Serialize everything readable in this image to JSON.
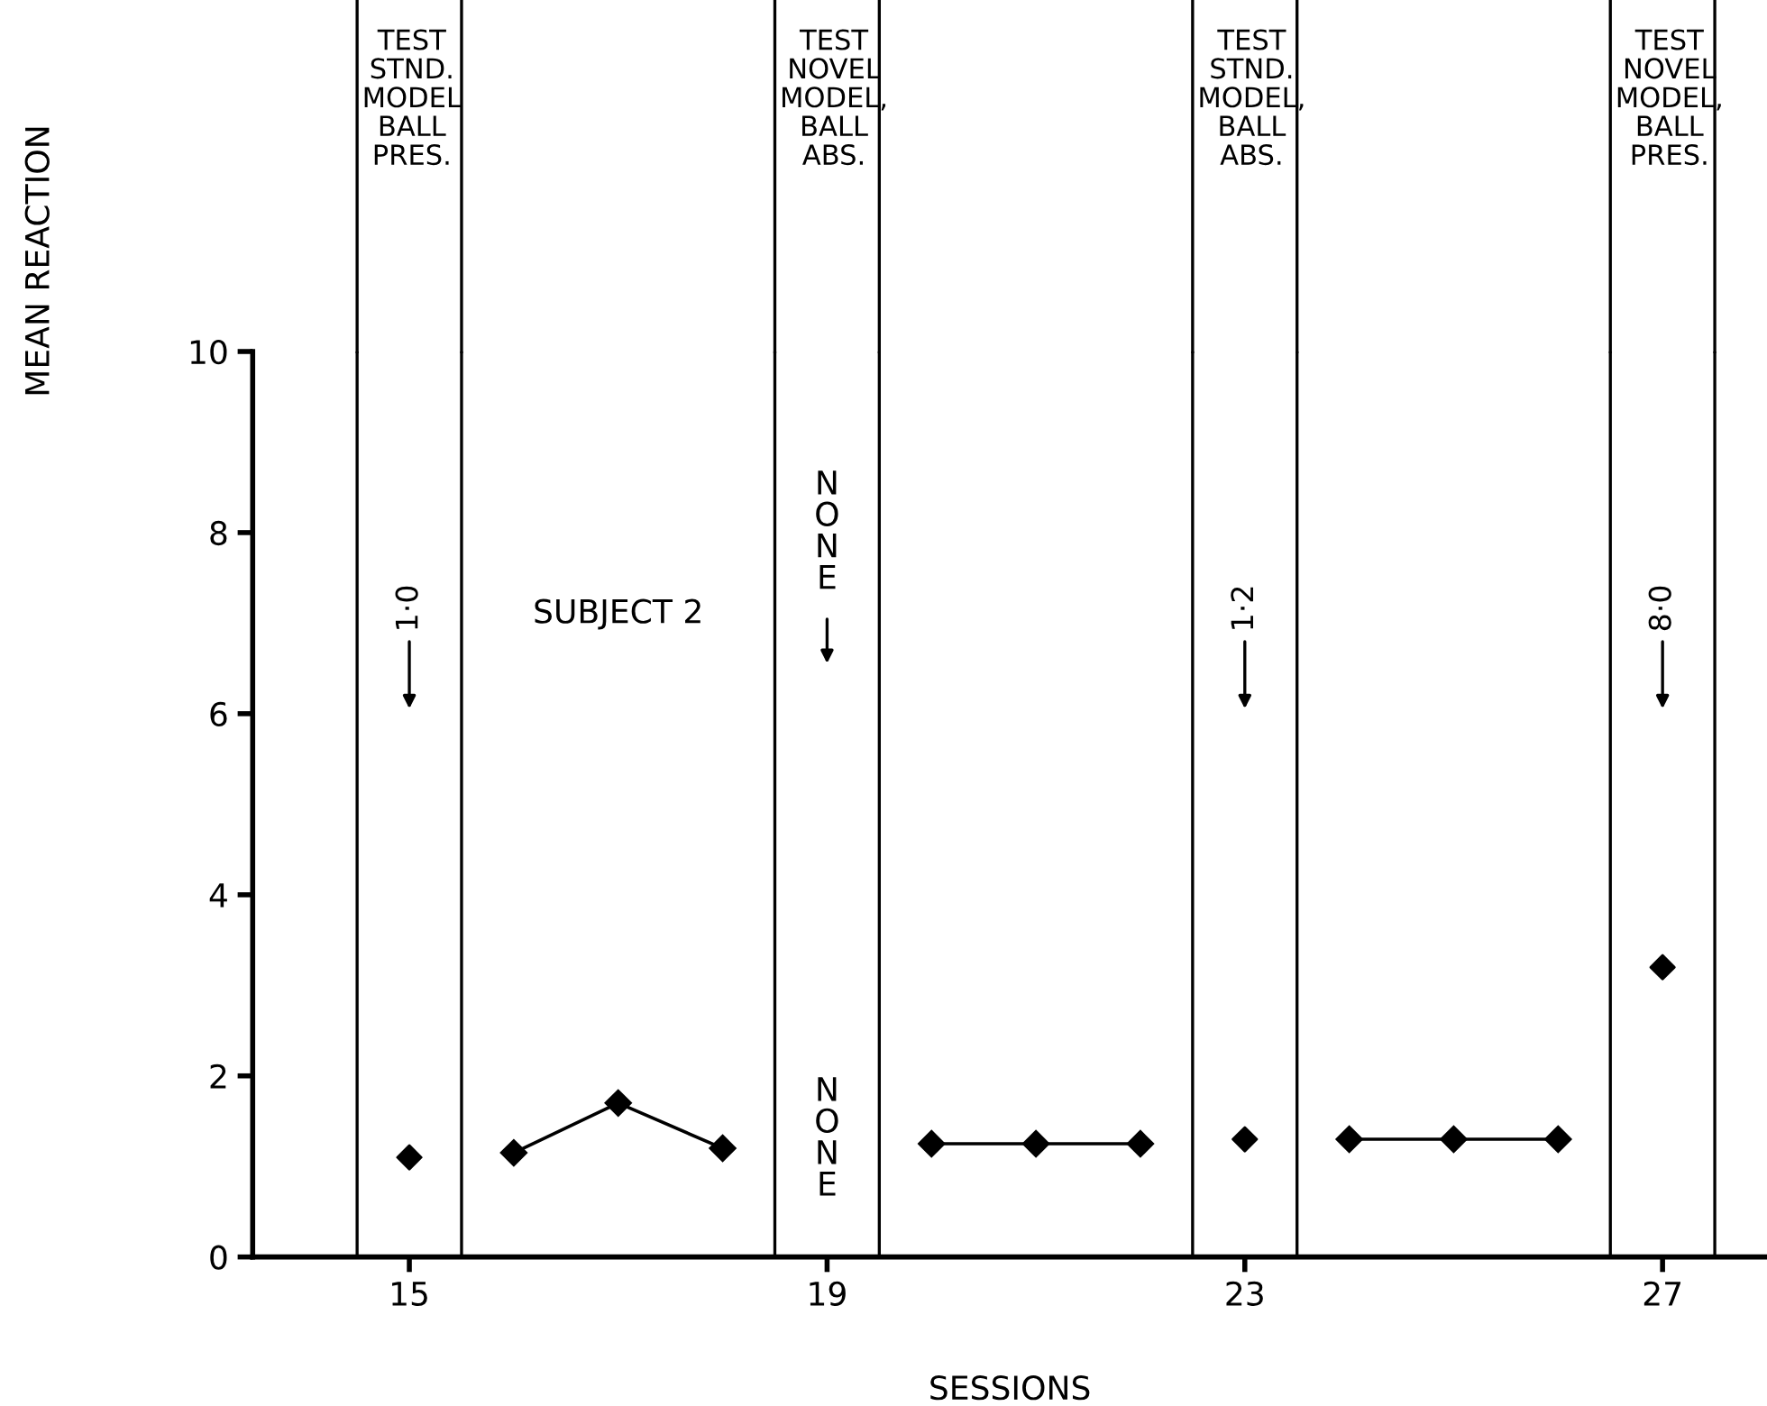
{
  "chart_data": {
    "type": "line",
    "xlabel": "SESSIONS",
    "ylabel": "MEAN REACTION",
    "marker": "diamond",
    "line_style": "solid",
    "grid": false,
    "legend": false,
    "xlim": [
      13.5,
      28
    ],
    "xticks": [
      15,
      19,
      23,
      27
    ],
    "ylim": [
      0,
      10
    ],
    "yticks": [
      0,
      2,
      4,
      6,
      8,
      10
    ],
    "series": [
      {
        "type": "scatter",
        "color": "#000000",
        "x": [
          15
        ],
        "values": [
          1.1
        ]
      },
      {
        "color": "#000000",
        "x": [
          16,
          17,
          18
        ],
        "values": [
          1.15,
          1.7,
          1.2
        ]
      },
      {
        "color": "#000000",
        "x": [
          20,
          21,
          22
        ],
        "values": [
          1.25,
          1.25,
          1.25
        ]
      },
      {
        "type": "scatter",
        "color": "#000000",
        "x": [
          23
        ],
        "values": [
          1.3
        ]
      },
      {
        "color": "#000000",
        "x": [
          24,
          25,
          26
        ],
        "values": [
          1.3,
          1.3,
          1.3
        ]
      },
      {
        "type": "scatter",
        "color": "#000000",
        "x": [
          27
        ],
        "values": [
          3.2
        ]
      }
    ],
    "ref_lines": [
      {
        "axis": "x",
        "value": 14.5,
        "label": "TEST\nSTND.\nMODEL\nBALL\nPRES."
      },
      {
        "axis": "x",
        "value": 15.5
      },
      {
        "axis": "x",
        "value": 18.5,
        "label": "TEST\nNOVEL\nMODEL,\nBALL\nABS."
      },
      {
        "axis": "x",
        "value": 19.5
      },
      {
        "axis": "x",
        "value": 22.5,
        "label": "TEST\nSTND.\nMODEL,\nBALL\nABS."
      },
      {
        "axis": "x",
        "value": 23.5
      },
      {
        "axis": "x",
        "value": 26.5,
        "label": "TEST\nNOVEL\nMODEL,\nBALL\nPRES."
      },
      {
        "axis": "x",
        "value": 27.5
      }
    ],
    "annotations": [
      "1·0",
      "SUBJECT 2",
      "NONE",
      "NONE",
      "1·2",
      "8·0"
    ]
  }
}
